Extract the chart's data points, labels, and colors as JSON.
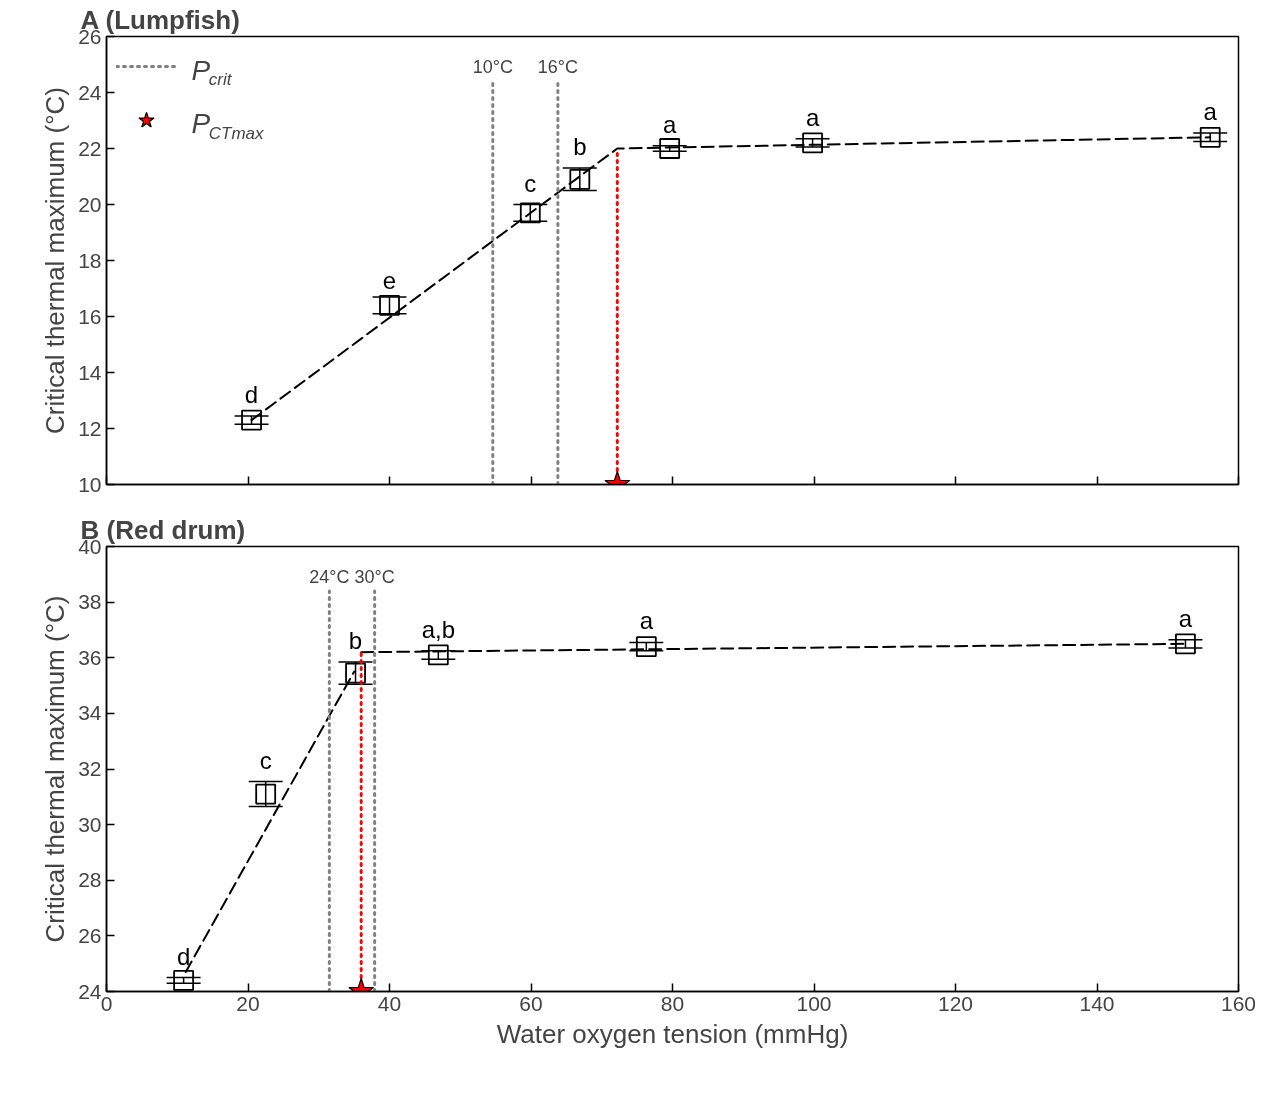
{
  "chart_data": [
    {
      "type": "scatter",
      "title": "A (Lumpfish)",
      "ylabel": "Critical thermal maximum (°C)",
      "xlim": [
        0,
        160
      ],
      "ylim": [
        10,
        26
      ],
      "xticks": [
        0,
        20,
        40,
        60,
        80,
        100,
        120,
        140,
        160
      ],
      "yticks": [
        10,
        12,
        14,
        16,
        18,
        20,
        22,
        24,
        26
      ],
      "tick_labels": "y",
      "grid": false,
      "legend": "top left",
      "marker": "square",
      "series": [
        {
          "type": "scatter",
          "color": "#000000",
          "x": [
            20.5,
            40.0,
            59.9,
            66.9,
            79.6,
            99.8,
            156.0
          ],
          "values": [
            12.3,
            16.4,
            19.7,
            20.9,
            22.0,
            22.2,
            22.4
          ],
          "errors": [
            0.15,
            0.3,
            0.3,
            0.4,
            0.1,
            0.15,
            0.15
          ],
          "value_labels": [
            "d",
            "e",
            "c",
            "b",
            "a",
            "a",
            "a"
          ]
        },
        {
          "type": "line",
          "color": "#000000",
          "line_style": "dashed",
          "marker": "none",
          "x": [
            20.5,
            72.2,
            156.0
          ],
          "values": [
            12.3,
            22.0,
            22.4
          ]
        },
        {
          "type": "line",
          "name": "P$_{crit}$",
          "color": "#808080",
          "line_style": "dotted",
          "marker": "none",
          "x": [
            54.6,
            54.6
          ],
          "values": [
            10,
            24.4
          ]
        },
        {
          "type": "line",
          "color": "#808080",
          "line_style": "dotted",
          "marker": "none",
          "x": [
            63.8,
            63.8
          ],
          "values": [
            10,
            24.4
          ]
        },
        {
          "type": "line",
          "color": "#ff0000",
          "line_style": "dotted",
          "marker": "none",
          "x": [
            72.2,
            72.2
          ],
          "values": [
            10,
            22.0
          ]
        },
        {
          "type": "scatter",
          "name": "P$_{CTmax}$",
          "color": "#ff0000",
          "marker": "star",
          "x": [
            72.2
          ],
          "values": [
            10
          ]
        }
      ],
      "annotations": [
        {
          "text": "10°C",
          "x": 54.6,
          "y": 24.4
        },
        {
          "text": "16°C",
          "x": 63.8,
          "y": 24.4
        }
      ]
    },
    {
      "type": "scatter",
      "title": "B (Red drum)",
      "xlabel": "Water oxygen tension (mmHg)",
      "ylabel": "Critical thermal maximum (°C)",
      "xlim": [
        0,
        160
      ],
      "ylim": [
        24,
        40
      ],
      "xticks": [
        0,
        20,
        40,
        60,
        80,
        100,
        120,
        140,
        160
      ],
      "yticks": [
        24,
        26,
        28,
        30,
        32,
        34,
        36,
        38,
        40
      ],
      "grid": false,
      "marker": "square",
      "series": [
        {
          "type": "scatter",
          "color": "#000000",
          "x": [
            10.9,
            22.5,
            35.2,
            46.9,
            76.3,
            152.5
          ],
          "values": [
            24.4,
            31.1,
            35.45,
            36.1,
            36.4,
            36.5
          ],
          "errors": [
            0.1,
            0.45,
            0.4,
            0.15,
            0.15,
            0.15
          ],
          "value_labels": [
            "d",
            "c",
            "b",
            "a,b",
            "a",
            "a"
          ]
        },
        {
          "type": "line",
          "color": "#000000",
          "line_style": "dashed",
          "marker": "none",
          "x": [
            11.2,
            35.0
          ],
          "values": [
            24.7,
            35.5
          ]
        },
        {
          "type": "line",
          "color": "#000000",
          "line_style": "dashed",
          "marker": "none",
          "x": [
            36.0,
            152.5
          ],
          "values": [
            36.2,
            36.5
          ]
        },
        {
          "type": "line",
          "color": "#808080",
          "line_style": "dotted",
          "marker": "none",
          "x": [
            31.5,
            31.5
          ],
          "values": [
            24,
            38.4
          ]
        },
        {
          "type": "line",
          "color": "#808080",
          "line_style": "dotted",
          "marker": "none",
          "x": [
            37.9,
            37.9
          ],
          "values": [
            24,
            38.4
          ]
        },
        {
          "type": "line",
          "color": "#ff0000",
          "line_style": "dotted",
          "marker": "none",
          "x": [
            36.0,
            36.0
          ],
          "values": [
            24,
            36.2
          ]
        },
        {
          "type": "scatter",
          "color": "#ff0000",
          "marker": "star",
          "x": [
            36.0
          ],
          "values": [
            24
          ]
        }
      ],
      "annotations": [
        {
          "text": "24°C",
          "x": 31.5,
          "y": 38.4
        },
        {
          "text": "30°C",
          "x": 37.9,
          "y": 38.4
        }
      ]
    }
  ]
}
